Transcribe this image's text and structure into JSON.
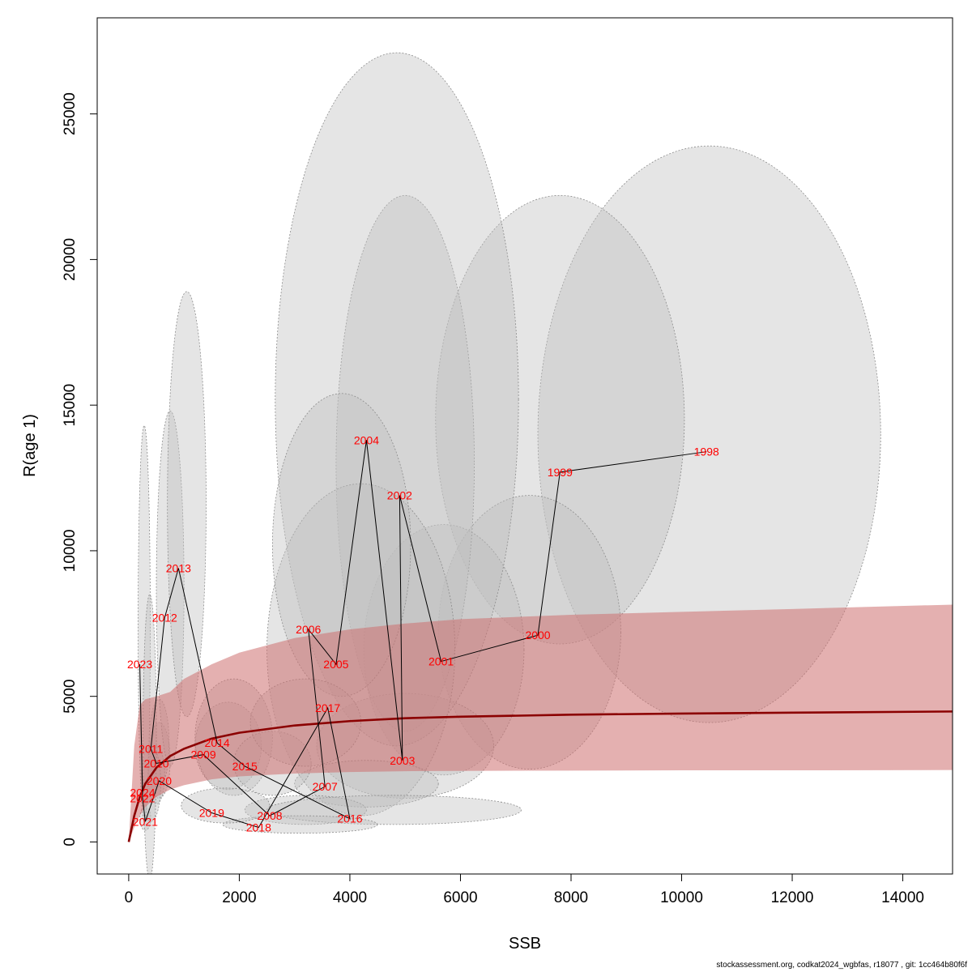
{
  "chart_data": {
    "type": "scatter",
    "xlabel": "SSB",
    "ylabel": "R(age 1)",
    "xlim": [
      -570,
      14900
    ],
    "ylim": [
      -1100,
      28300
    ],
    "x_ticks": [
      0,
      2000,
      4000,
      6000,
      8000,
      10000,
      12000,
      14000
    ],
    "y_ticks": [
      0,
      5000,
      10000,
      15000,
      20000,
      25000
    ],
    "colors": {
      "ellipse_fill": "#bebebe",
      "ellipse_stroke": "#8c8c8c",
      "band_fill": "#cd7070",
      "curve": "#8b0000",
      "path": "#000000",
      "year_label": "#ff0000"
    },
    "stock_recruitment_curve": {
      "x": [
        0,
        100,
        200,
        300,
        500,
        750,
        1000,
        1500,
        2000,
        3000,
        4000,
        5000,
        6000,
        8000,
        10000,
        12000,
        14900
      ],
      "y": [
        0,
        900,
        1550,
        2000,
        2550,
        2950,
        3200,
        3550,
        3750,
        4000,
        4150,
        4250,
        4300,
        4370,
        4410,
        4440,
        4480
      ],
      "lower": [
        0,
        500,
        900,
        1200,
        1550,
        1800,
        1950,
        2150,
        2250,
        2350,
        2400,
        2430,
        2440,
        2450,
        2460,
        2460,
        2470
      ],
      "upper": [
        0,
        3300,
        4700,
        4900,
        5000,
        5150,
        5600,
        6100,
        6500,
        7000,
        7300,
        7500,
        7650,
        7800,
        7900,
        8000,
        8150
      ]
    },
    "points": [
      {
        "year": "1998",
        "ssb": 10450,
        "r": 13400
      },
      {
        "year": "1999",
        "ssb": 7800,
        "r": 12700
      },
      {
        "year": "2000",
        "ssb": 7400,
        "r": 7100
      },
      {
        "year": "2001",
        "ssb": 5650,
        "r": 6200
      },
      {
        "year": "2002",
        "ssb": 4900,
        "r": 11900
      },
      {
        "year": "2003",
        "ssb": 4950,
        "r": 2800
      },
      {
        "year": "2004",
        "ssb": 4300,
        "r": 13800
      },
      {
        "year": "2005",
        "ssb": 3750,
        "r": 6100
      },
      {
        "year": "2006",
        "ssb": 3250,
        "r": 7300
      },
      {
        "year": "2007",
        "ssb": 3550,
        "r": 1900
      },
      {
        "year": "2008",
        "ssb": 2550,
        "r": 900
      },
      {
        "year": "2009",
        "ssb": 1350,
        "r": 3000
      },
      {
        "year": "2010",
        "ssb": 500,
        "r": 2700
      },
      {
        "year": "2011",
        "ssb": 400,
        "r": 3200
      },
      {
        "year": "2012",
        "ssb": 650,
        "r": 7700
      },
      {
        "year": "2013",
        "ssb": 900,
        "r": 9400
      },
      {
        "year": "2014",
        "ssb": 1600,
        "r": 3400
      },
      {
        "year": "2015",
        "ssb": 2100,
        "r": 2600
      },
      {
        "year": "2016",
        "ssb": 4000,
        "r": 800
      },
      {
        "year": "2017",
        "ssb": 3600,
        "r": 4600
      },
      {
        "year": "2018",
        "ssb": 2350,
        "r": 500
      },
      {
        "year": "2019",
        "ssb": 1500,
        "r": 1000
      },
      {
        "year": "2020",
        "ssb": 550,
        "r": 2100
      },
      {
        "year": "2021",
        "ssb": 300,
        "r": 700
      },
      {
        "year": "2022",
        "ssb": 250,
        "r": 1500
      },
      {
        "year": "2023",
        "ssb": 200,
        "r": 6100
      },
      {
        "year": "2024",
        "ssb": 250,
        "r": 1700
      }
    ],
    "confidence_regions": [
      {
        "cx": 10500,
        "cy": 14000,
        "rx": 3100,
        "ry": 9900
      },
      {
        "cx": 7800,
        "cy": 14500,
        "rx": 2250,
        "ry": 7700
      },
      {
        "cx": 7250,
        "cy": 7200,
        "rx": 1650,
        "ry": 4700
      },
      {
        "cx": 5700,
        "cy": 6600,
        "rx": 1450,
        "ry": 4300
      },
      {
        "cx": 5000,
        "cy": 13000,
        "rx": 1250,
        "ry": 9200
      },
      {
        "cx": 5000,
        "cy": 3300,
        "rx": 1600,
        "ry": 1800
      },
      {
        "cx": 4850,
        "cy": 15200,
        "rx": 2200,
        "ry": 11900
      },
      {
        "cx": 4200,
        "cy": 6600,
        "rx": 1700,
        "ry": 5700
      },
      {
        "cx": 3850,
        "cy": 10200,
        "rx": 1250,
        "ry": 5200
      },
      {
        "cx": 4300,
        "cy": 2000,
        "rx": 1300,
        "ry": 800
      },
      {
        "cx": 3200,
        "cy": 1100,
        "rx": 1100,
        "ry": 500
      },
      {
        "cx": 1800,
        "cy": 3300,
        "rx": 600,
        "ry": 1500
      },
      {
        "cx": 550,
        "cy": 2800,
        "rx": 200,
        "ry": 1300
      },
      {
        "cx": 550,
        "cy": 3400,
        "rx": 180,
        "ry": 1500
      },
      {
        "cx": 750,
        "cy": 8700,
        "rx": 250,
        "ry": 6100
      },
      {
        "cx": 1050,
        "cy": 11600,
        "rx": 350,
        "ry": 7300
      },
      {
        "cx": 1900,
        "cy": 3600,
        "rx": 700,
        "ry": 2000
      },
      {
        "cx": 2600,
        "cy": 2700,
        "rx": 700,
        "ry": 1100
      },
      {
        "cx": 4800,
        "cy": 1100,
        "rx": 2300,
        "ry": 500
      },
      {
        "cx": 3200,
        "cy": 4100,
        "rx": 1000,
        "ry": 1500
      },
      {
        "cx": 3100,
        "cy": 600,
        "rx": 1400,
        "ry": 300
      },
      {
        "cx": 1750,
        "cy": 1250,
        "rx": 800,
        "ry": 600
      },
      {
        "cx": 500,
        "cy": 2300,
        "rx": 150,
        "ry": 1000
      },
      {
        "cx": 300,
        "cy": 800,
        "rx": 100,
        "ry": 400
      },
      {
        "cx": 400,
        "cy": 2000,
        "rx": 180,
        "ry": 1300
      },
      {
        "cx": 280,
        "cy": 7500,
        "rx": 110,
        "ry": 6800
      },
      {
        "cx": 380,
        "cy": 3600,
        "rx": 120,
        "ry": 4900
      }
    ]
  },
  "footer_text": "stockassessment.org, codkat2024_wgbfas, r18077 , git: 1cc464b80f6f"
}
